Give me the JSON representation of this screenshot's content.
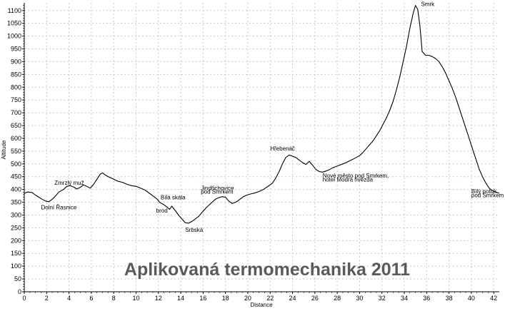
{
  "chart_data": {
    "type": "line",
    "xlabel": "Distance",
    "ylabel": "Altitude",
    "xlim": [
      0,
      42.5
    ],
    "ylim": [
      0,
      1130
    ],
    "x_ticks": [
      0,
      2,
      4,
      6,
      8,
      10,
      12,
      14,
      16,
      18,
      20,
      22,
      24,
      26,
      28,
      30,
      32,
      34,
      36,
      38,
      40,
      42
    ],
    "y_ticks": [
      0,
      50,
      100,
      150,
      200,
      250,
      300,
      350,
      400,
      450,
      500,
      550,
      600,
      650,
      700,
      750,
      800,
      850,
      900,
      950,
      1000,
      1050,
      1100
    ],
    "grid": true,
    "watermark": "Aplikovaná termomechanika 2011",
    "series": [
      {
        "x": [
          0,
          0.3,
          0.7,
          1.0,
          1.3,
          1.6,
          1.9,
          2.2,
          2.5,
          2.8,
          3.1,
          3.5,
          3.8,
          4.1,
          4.4,
          4.7,
          5.0,
          5.3,
          5.6,
          5.9,
          6.2,
          6.5,
          6.8,
          7.0,
          7.3,
          7.6,
          8.0,
          8.4,
          8.8,
          9.2,
          9.6,
          10.0,
          10.4,
          10.8,
          11.2,
          11.6,
          11.9,
          12.1,
          12.3,
          12.5,
          12.8,
          13.0,
          13.2,
          13.5,
          13.8,
          14.1,
          14.4,
          14.7,
          15.0,
          15.3,
          15.6,
          15.9,
          16.2,
          16.5,
          16.8,
          17.1,
          17.4,
          17.7,
          18.0,
          18.3,
          18.6,
          19.0,
          19.3,
          19.6,
          19.9,
          20.2,
          20.6,
          21.0,
          21.4,
          21.8,
          22.2,
          22.5,
          22.8,
          23.1,
          23.4,
          23.7,
          24.0,
          24.3,
          24.6,
          24.9,
          25.2,
          25.5,
          25.8,
          26.1,
          26.4,
          26.7,
          27.0,
          27.3,
          27.6,
          27.9,
          28.2,
          28.5,
          28.8,
          29.1,
          29.4,
          29.7,
          30.0,
          30.3,
          30.6,
          30.9,
          31.2,
          31.5,
          31.8,
          32.1,
          32.4,
          32.7,
          33.0,
          33.3,
          33.6,
          33.9,
          34.2,
          34.5,
          34.8,
          35.0,
          35.2,
          35.4,
          35.6,
          35.9,
          36.2,
          36.5,
          36.8,
          37.1,
          37.4,
          37.7,
          38.0,
          38.3,
          38.6,
          38.9,
          39.2,
          39.5,
          39.8,
          40.1,
          40.4,
          40.7,
          41.0,
          41.3,
          41.6,
          41.9,
          42.2,
          42.5
        ],
        "y": [
          385,
          390,
          388,
          378,
          370,
          362,
          355,
          352,
          362,
          375,
          390,
          400,
          412,
          415,
          410,
          402,
          408,
          418,
          412,
          405,
          420,
          440,
          460,
          465,
          455,
          448,
          440,
          432,
          428,
          420,
          415,
          412,
          405,
          398,
          385,
          372,
          362,
          350,
          345,
          340,
          330,
          322,
          335,
          318,
          300,
          285,
          270,
          268,
          275,
          285,
          295,
          310,
          325,
          338,
          350,
          362,
          368,
          372,
          370,
          355,
          345,
          352,
          362,
          372,
          378,
          382,
          386,
          392,
          400,
          412,
          425,
          445,
          470,
          500,
          525,
          535,
          530,
          525,
          515,
          505,
          498,
          510,
          495,
          478,
          470,
          468,
          472,
          478,
          485,
          490,
          495,
          500,
          505,
          512,
          518,
          525,
          532,
          545,
          560,
          575,
          590,
          610,
          630,
          655,
          680,
          710,
          745,
          790,
          840,
          900,
          960,
          1030,
          1090,
          1120,
          1105,
          1040,
          940,
          925,
          925,
          920,
          912,
          900,
          880,
          855,
          825,
          795,
          760,
          720,
          680,
          640,
          600,
          560,
          520,
          480,
          450,
          425,
          405,
          395,
          390,
          385
        ]
      }
    ],
    "annotations": [
      {
        "text": "Dolní Řasnice",
        "x": 1.5,
        "y": 322
      },
      {
        "text": "Zmrzlý muž",
        "x": 2.7,
        "y": 418
      },
      {
        "text": "Bílá skála",
        "x": 12.2,
        "y": 362
      },
      {
        "text": "brod",
        "x": 11.8,
        "y": 310
      },
      {
        "text": "Srbská",
        "x": 14.4,
        "y": 235
      },
      {
        "text": "Jindřichovice",
        "x": 15.8,
        "y": 398
      },
      {
        "text": "pod Smrkem",
        "x": 15.8,
        "y": 383
      },
      {
        "text": "Hřebenáč",
        "x": 22.0,
        "y": 552
      },
      {
        "text": "Nové město pod Smrkem,",
        "x": 26.7,
        "y": 446
      },
      {
        "text": "hotel Modrá hvězda",
        "x": 26.7,
        "y": 431
      },
      {
        "text": "Smrk",
        "x": 35.5,
        "y": 1117
      },
      {
        "text": "Bílý potok",
        "x": 40.0,
        "y": 385
      },
      {
        "text": "pod Smrkem",
        "x": 40.0,
        "y": 370
      }
    ]
  }
}
